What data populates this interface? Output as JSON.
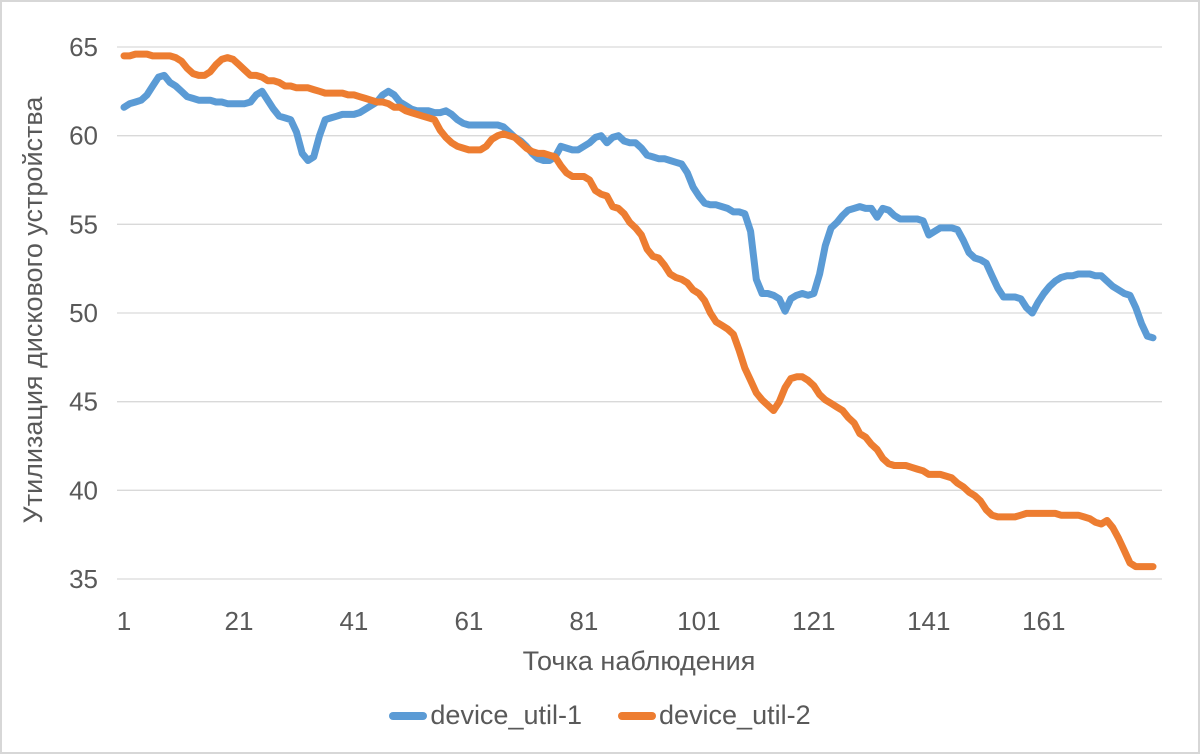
{
  "colors": {
    "background": "#ffffff",
    "border": "#d7d7d7",
    "gridline": "#d9d9d9",
    "axis_text": "#595959",
    "series1": "#5b9bd5",
    "series2": "#ed7d31"
  },
  "chart_data": {
    "type": "line",
    "title": "",
    "xlabel": "Точка наблюдения",
    "ylabel": "Утилизация дискового устройства",
    "x_ticks": [
      1,
      21,
      41,
      61,
      81,
      101,
      121,
      141,
      161
    ],
    "y_ticks": [
      35,
      40,
      45,
      50,
      55,
      60,
      65
    ],
    "ylim": [
      35,
      65
    ],
    "x_range": [
      1,
      180
    ],
    "grid": "horizontal",
    "legend_position": "bottom",
    "series": [
      {
        "name": "device_util-1",
        "color": "#5b9bd5",
        "values": [
          61.6,
          61.8,
          61.9,
          62.0,
          62.3,
          62.8,
          63.3,
          63.4,
          63.0,
          62.8,
          62.5,
          62.2,
          62.1,
          62.0,
          62.0,
          62.0,
          61.9,
          61.9,
          61.8,
          61.8,
          61.8,
          61.8,
          61.9,
          62.3,
          62.5,
          62.0,
          61.5,
          61.1,
          61.0,
          60.9,
          60.2,
          59.0,
          58.6,
          58.8,
          60.0,
          60.9,
          61.0,
          61.1,
          61.2,
          61.2,
          61.2,
          61.3,
          61.5,
          61.7,
          61.9,
          62.3,
          62.5,
          62.3,
          61.9,
          61.7,
          61.5,
          61.4,
          61.4,
          61.4,
          61.3,
          61.3,
          61.4,
          61.2,
          60.9,
          60.7,
          60.6,
          60.6,
          60.6,
          60.6,
          60.6,
          60.6,
          60.5,
          60.2,
          59.9,
          59.7,
          59.4,
          59.0,
          58.7,
          58.6,
          58.6,
          58.8,
          59.4,
          59.3,
          59.2,
          59.2,
          59.4,
          59.6,
          59.9,
          60.0,
          59.6,
          59.9,
          60.0,
          59.7,
          59.6,
          59.6,
          59.3,
          58.9,
          58.8,
          58.7,
          58.7,
          58.6,
          58.5,
          58.4,
          57.9,
          57.1,
          56.6,
          56.2,
          56.1,
          56.1,
          56.0,
          55.9,
          55.7,
          55.7,
          55.6,
          54.6,
          51.9,
          51.1,
          51.1,
          51.0,
          50.8,
          50.1,
          50.8,
          51.0,
          51.1,
          51.0,
          51.1,
          52.2,
          53.8,
          54.8,
          55.1,
          55.5,
          55.8,
          55.9,
          56.0,
          55.9,
          55.9,
          55.4,
          55.9,
          55.8,
          55.5,
          55.3,
          55.3,
          55.3,
          55.3,
          55.2,
          54.4,
          54.6,
          54.8,
          54.8,
          54.8,
          54.7,
          54.1,
          53.4,
          53.1,
          53.0,
          52.8,
          52.1,
          51.4,
          50.9,
          50.9,
          50.9,
          50.8,
          50.3,
          50.0,
          50.6,
          51.1,
          51.5,
          51.8,
          52.0,
          52.1,
          52.1,
          52.2,
          52.2,
          52.2,
          52.1,
          52.1,
          51.8,
          51.5,
          51.3,
          51.1,
          51.0,
          50.3,
          49.4,
          48.7,
          48.6
        ]
      },
      {
        "name": "device_util-2",
        "color": "#ed7d31",
        "values": [
          64.5,
          64.5,
          64.6,
          64.6,
          64.6,
          64.5,
          64.5,
          64.5,
          64.5,
          64.4,
          64.2,
          63.8,
          63.5,
          63.4,
          63.4,
          63.6,
          64.0,
          64.3,
          64.4,
          64.3,
          64.0,
          63.7,
          63.4,
          63.4,
          63.3,
          63.1,
          63.1,
          63.0,
          62.8,
          62.8,
          62.7,
          62.7,
          62.7,
          62.6,
          62.5,
          62.4,
          62.4,
          62.4,
          62.4,
          62.3,
          62.3,
          62.2,
          62.1,
          62.0,
          61.9,
          61.9,
          61.8,
          61.6,
          61.6,
          61.4,
          61.3,
          61.2,
          61.1,
          61.0,
          60.9,
          60.3,
          59.9,
          59.6,
          59.4,
          59.3,
          59.2,
          59.2,
          59.2,
          59.4,
          59.8,
          60.0,
          60.1,
          60.0,
          59.9,
          59.6,
          59.3,
          59.1,
          59.0,
          59.0,
          58.9,
          58.8,
          58.3,
          57.9,
          57.7,
          57.7,
          57.7,
          57.5,
          56.9,
          56.7,
          56.6,
          56.0,
          55.9,
          55.6,
          55.1,
          54.8,
          54.4,
          53.6,
          53.2,
          53.1,
          52.7,
          52.2,
          52.0,
          51.9,
          51.7,
          51.3,
          51.1,
          50.7,
          50.0,
          49.5,
          49.3,
          49.1,
          48.8,
          47.9,
          46.9,
          46.2,
          45.5,
          45.1,
          44.8,
          44.5,
          45.0,
          45.8,
          46.3,
          46.4,
          46.4,
          46.2,
          45.9,
          45.4,
          45.1,
          44.9,
          44.7,
          44.5,
          44.1,
          43.8,
          43.2,
          43.0,
          42.6,
          42.3,
          41.8,
          41.5,
          41.4,
          41.4,
          41.4,
          41.3,
          41.2,
          41.1,
          40.9,
          40.9,
          40.9,
          40.8,
          40.7,
          40.4,
          40.2,
          39.9,
          39.7,
          39.4,
          38.9,
          38.6,
          38.5,
          38.5,
          38.5,
          38.5,
          38.6,
          38.7,
          38.7,
          38.7,
          38.7,
          38.7,
          38.7,
          38.6,
          38.6,
          38.6,
          38.6,
          38.5,
          38.4,
          38.2,
          38.1,
          38.3,
          37.9,
          37.3,
          36.6,
          35.9,
          35.7,
          35.7,
          35.7,
          35.7
        ]
      }
    ]
  }
}
